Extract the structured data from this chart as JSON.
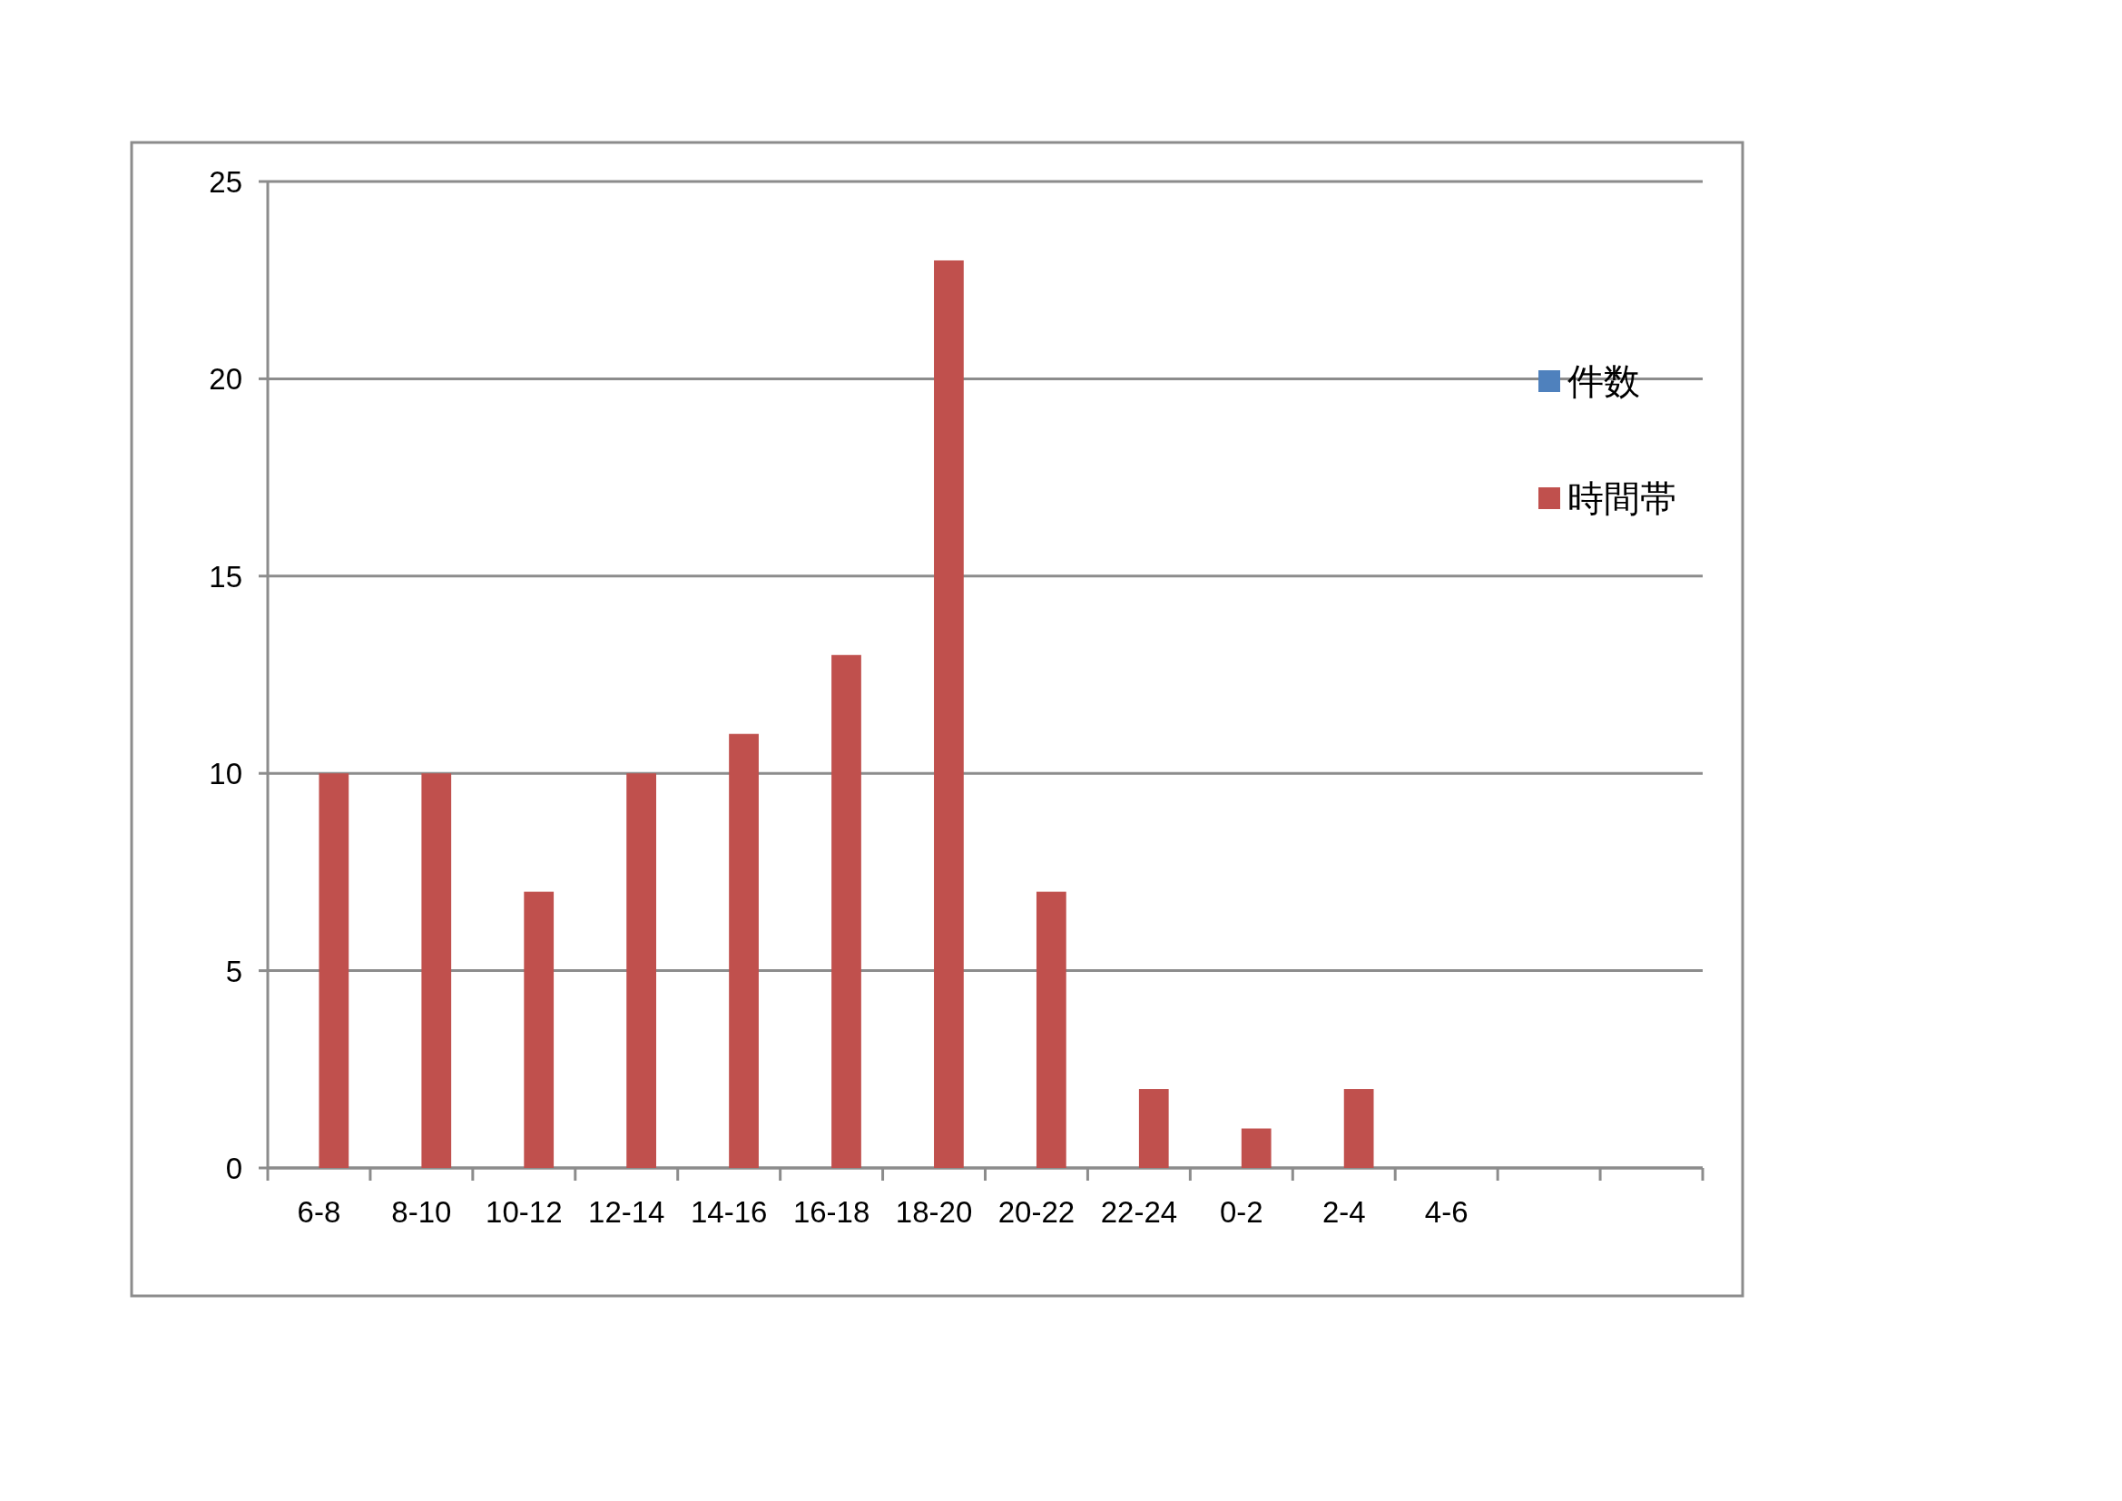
{
  "chart_data": {
    "type": "bar",
    "categories": [
      "6-8",
      "8-10",
      "10-12",
      "12-14",
      "14-16",
      "16-18",
      "18-20",
      "20-22",
      "22-24",
      "0-2",
      "2-4",
      "4-6",
      null,
      null
    ],
    "series": [
      {
        "name": "件数",
        "color": "#4f81bd",
        "values": [
          null,
          null,
          null,
          null,
          null,
          null,
          null,
          null,
          null,
          null,
          null,
          null,
          null,
          null
        ]
      },
      {
        "name": "時間帯",
        "color": "#c0504d",
        "values": [
          10,
          10,
          7,
          10,
          11,
          13,
          23,
          7,
          2,
          1,
          2,
          null,
          null,
          null
        ]
      }
    ],
    "ylim": [
      0,
      25
    ],
    "yticks": [
      0,
      5,
      10,
      15,
      20,
      25
    ],
    "grid": "y",
    "legend": "right"
  }
}
